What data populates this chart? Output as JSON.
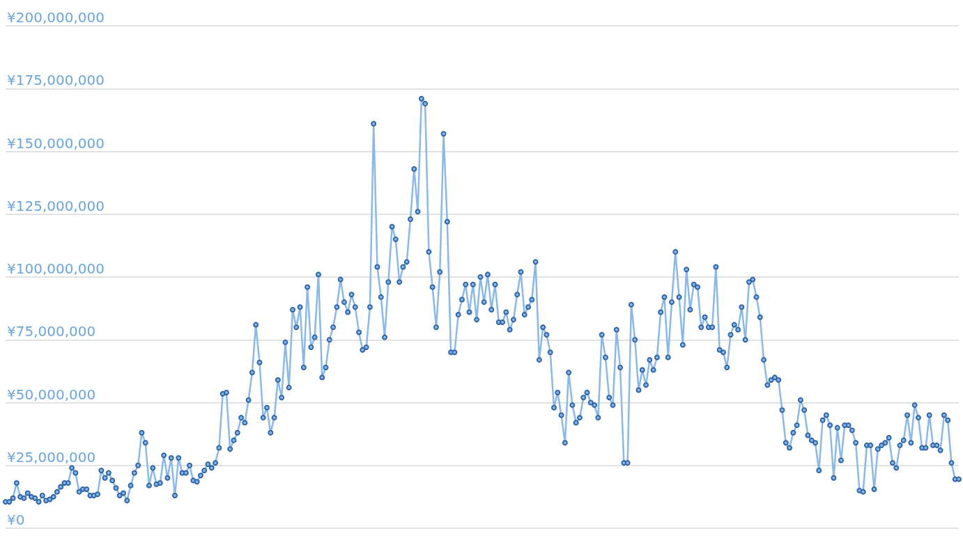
{
  "chart_data": {
    "type": "line",
    "categories": [
      null,
      null,
      null,
      null,
      null,
      null,
      null,
      null,
      null,
      null,
      null,
      null,
      null,
      null,
      null,
      null,
      null,
      null,
      null,
      null,
      null,
      null,
      null,
      null,
      null,
      null,
      null,
      null,
      null,
      null,
      null,
      null,
      null,
      null,
      null,
      null,
      null,
      null,
      null,
      null,
      null,
      null,
      null,
      null,
      null,
      null,
      null,
      null,
      null,
      null,
      null,
      null,
      null,
      null,
      null,
      null,
      null,
      null,
      null,
      null,
      null,
      null,
      null,
      null,
      null,
      null,
      null,
      null,
      null,
      null,
      null,
      null,
      null,
      null,
      null,
      null,
      null,
      null,
      null,
      null,
      null,
      null,
      null,
      null,
      null,
      null,
      null,
      null,
      null,
      null,
      null,
      null,
      null,
      null,
      null,
      null,
      null,
      null,
      null,
      null,
      null,
      null,
      null,
      null,
      null,
      null,
      null,
      null,
      null,
      null,
      null,
      null,
      null,
      null,
      null,
      null,
      null,
      null,
      null,
      null,
      null,
      null,
      null,
      null,
      null,
      null,
      null,
      null,
      null,
      null,
      null,
      null,
      null,
      null,
      null,
      null,
      null,
      null,
      null,
      null,
      null,
      null,
      null,
      null,
      null,
      null,
      null,
      null,
      null,
      null,
      null,
      null,
      null,
      null,
      null,
      null,
      null,
      null,
      null,
      null,
      null,
      null,
      null,
      null,
      null,
      null,
      null,
      null,
      null,
      null,
      null,
      null,
      null,
      null,
      null,
      null,
      null,
      null,
      null,
      null,
      null,
      null,
      null,
      null,
      null,
      null,
      null,
      null,
      null,
      null,
      null,
      null,
      null,
      null,
      null,
      null,
      null,
      null,
      null,
      null,
      null,
      null,
      null,
      null,
      null,
      null,
      null,
      null,
      null,
      null,
      null,
      null,
      null,
      null,
      null,
      null,
      null,
      null,
      null,
      null,
      null,
      null,
      null,
      null,
      null,
      null,
      null,
      null,
      null,
      null,
      null,
      null,
      null,
      null,
      null,
      null,
      null,
      null,
      null,
      null,
      null,
      null,
      null,
      null,
      null,
      null,
      null,
      null,
      null,
      null,
      null,
      null,
      null,
      null,
      null,
      null,
      null,
      null,
      null,
      null
    ],
    "series": [
      {
        "color": "#8ab8e8",
        "values": [
          10500000,
          10500000,
          12000000,
          18000000,
          12500000,
          12000000,
          14000000,
          12500000,
          12000000,
          10500000,
          13000000,
          11000000,
          11500000,
          12500000,
          14500000,
          16500000,
          18000000,
          18000000,
          24000000,
          22000000,
          14500000,
          15500000,
          15500000,
          13000000,
          13000000,
          13500000,
          23000000,
          20000000,
          22000000,
          19000000,
          16000000,
          13000000,
          14000000,
          11000000,
          17000000,
          22000000,
          25000000,
          38000000,
          34000000,
          17000000,
          24000000,
          17500000,
          18000000,
          29000000,
          20000000,
          28000000,
          13000000,
          28000000,
          22000000,
          22000000,
          25000000,
          19000000,
          18500000,
          21000000,
          23000000,
          25500000,
          24000000,
          26000000,
          32000000,
          53500000,
          54000000,
          31500000,
          35000000,
          38000000,
          44000000,
          42000000,
          51000000,
          62000000,
          81000000,
          66000000,
          44000000,
          48000000,
          38000000,
          44000000,
          59000000,
          52000000,
          74000000,
          56000000,
          87000000,
          80000000,
          88000000,
          64000000,
          96000000,
          72000000,
          76000000,
          101000000,
          60000000,
          64000000,
          75000000,
          80000000,
          88000000,
          99000000,
          90000000,
          86000000,
          93000000,
          88000000,
          78000000,
          71000000,
          72000000,
          88000000,
          161000000,
          104000000,
          92000000,
          76000000,
          98000000,
          120000000,
          115000000,
          98000000,
          104000000,
          106000000,
          123000000,
          143000000,
          126000000,
          171000000,
          169000000,
          110000000,
          96000000,
          80000000,
          102000000,
          157000000,
          122000000,
          70000000,
          70000000,
          85000000,
          91000000,
          97000000,
          86000000,
          97000000,
          83000000,
          100000000,
          90000000,
          101000000,
          87000000,
          97000000,
          82000000,
          82000000,
          86000000,
          79000000,
          83000000,
          93000000,
          102000000,
          85000000,
          88000000,
          91000000,
          106000000,
          67000000,
          80000000,
          77000000,
          70000000,
          48000000,
          54000000,
          45000000,
          34000000,
          62000000,
          49000000,
          42000000,
          44000000,
          52000000,
          54000000,
          50000000,
          49000000,
          44000000,
          77000000,
          68000000,
          52000000,
          49000000,
          79000000,
          64000000,
          26000000,
          26000000,
          89000000,
          75000000,
          55000000,
          63000000,
          57000000,
          67000000,
          63000000,
          68000000,
          86000000,
          92000000,
          68000000,
          90000000,
          110000000,
          92000000,
          73000000,
          103000000,
          87000000,
          97000000,
          96000000,
          80000000,
          84000000,
          80000000,
          80000000,
          104000000,
          71000000,
          70000000,
          64000000,
          77000000,
          81000000,
          79000000,
          88000000,
          75000000,
          98000000,
          99000000,
          92000000,
          84000000,
          67000000,
          57000000,
          59000000,
          60000000,
          59000000,
          47000000,
          34000000,
          32000000,
          38000000,
          41000000,
          51000000,
          47000000,
          37000000,
          35000000,
          34000000,
          23000000,
          43000000,
          45000000,
          41000000,
          20000000,
          40000000,
          27000000,
          41000000,
          41000000,
          39000000,
          34000000,
          15000000,
          14500000,
          33000000,
          33000000,
          15500000,
          31500000,
          33000000,
          34000000,
          36000000,
          26000000,
          24000000,
          33000000,
          35000000,
          45000000,
          34000000,
          49000000,
          44000000,
          32000000,
          32000000,
          45000000,
          33000000,
          33000000,
          31000000,
          45000000,
          43000000,
          26000000,
          19500000,
          19500000
        ]
      }
    ],
    "ylim": [
      0,
      200000000
    ],
    "yticks": [
      {
        "value": 0,
        "label": "¥0"
      },
      {
        "value": 25000000,
        "label": "¥25,000,000"
      },
      {
        "value": 50000000,
        "label": "¥50,000,000"
      },
      {
        "value": 75000000,
        "label": "¥75,000,000"
      },
      {
        "value": 100000000,
        "label": "¥100,000,000"
      },
      {
        "value": 125000000,
        "label": "¥125,000,000"
      },
      {
        "value": 150000000,
        "label": "¥150,000,000"
      },
      {
        "value": 175000000,
        "label": "¥175,000,000"
      },
      {
        "value": 200000000,
        "label": "¥200,000,000"
      }
    ],
    "grid": "y",
    "marker": "circle",
    "line_style": "solid",
    "tick_labels": "y"
  }
}
